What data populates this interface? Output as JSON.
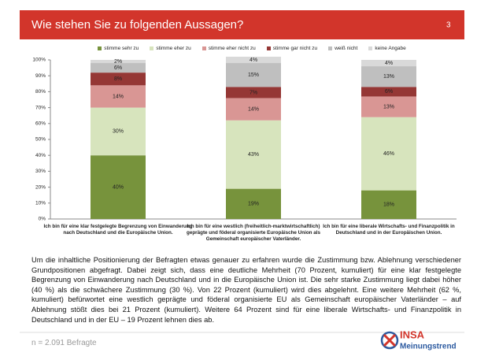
{
  "page": {
    "title": "Wie stehen Sie zu folgenden Aussagen?",
    "page_number": "3",
    "body": "Um die inhaltliche Positionierung der Befragten etwas genauer zu erfahren wurde die Zustimmung bzw. Ablehnung verschiedener Grundpositionen abgefragt. Dabei zeigt sich, dass eine deutliche Mehrheit (70 Prozent, kumuliert) für eine klar festgelegte Begrenzung von Einwanderung nach Deutschland und in die Europäische Union ist. Die sehr starke Zustimmung liegt dabei höher (40 %) als die schwächere Zustimmung (30 %). Von 22 Prozent (kumuliert) wird dies abgelehnt. Eine weitere Mehrheit (62 %, kumuliert) befürwortet eine westlich geprägte und föderal organisierte EU als Gemeinschaft europäischer Vaterländer – auf Ablehnung stößt dies bei 21 Prozent (kumuliert). Weitere 64 Prozent sind für eine liberale Wirtschafts- und Finanzpolitik in Deutschland und in der EU – 19 Prozent lehnen dies ab.",
    "footnote": "n = 2.091 Befragte",
    "logo_brand": "INSA",
    "logo_sub": "Meinungstrend"
  },
  "chart_data": {
    "type": "stacked_bar",
    "categories": [
      "Ich bin für eine klar festgelegte Begrenzung von Einwanderung nach Deutschland und die Europäische Union.",
      "Ich bin für eine westlich (freiheitlich-marktwirtschaftlich) geprägte und föderal organisierte Europäische Union als Gemeinschaft europäischer Vaterländer.",
      "Ich bin für eine liberale Wirtschafts- und Finanzpolitik in Deutschland und in der Europäischen Union."
    ],
    "series": [
      {
        "name": "stimme sehr zu",
        "color": "#77933c",
        "values": [
          40,
          19,
          18
        ],
        "value_labels": [
          "40%",
          "19%",
          "18%"
        ]
      },
      {
        "name": "stimme eher zu",
        "color": "#d7e4bd",
        "values": [
          30,
          43,
          46
        ],
        "value_labels": [
          "30%",
          "43%",
          "46%"
        ]
      },
      {
        "name": "stimme eher nicht zu",
        "color": "#d99694",
        "values": [
          14,
          14,
          13
        ],
        "value_labels": [
          "14%",
          "14%",
          "13%"
        ]
      },
      {
        "name": "stimme gar nicht zu",
        "color": "#953735",
        "values": [
          8,
          7,
          6
        ],
        "value_labels": [
          "8%",
          "7%",
          "6%"
        ]
      },
      {
        "name": "weiß nicht",
        "color": "#bfbfbf",
        "values": [
          6,
          15,
          13
        ],
        "value_labels": [
          "6%",
          "15%",
          "13%"
        ]
      },
      {
        "name": "keine Angabe",
        "color": "#d9d9d9",
        "values": [
          2,
          4,
          4
        ],
        "value_labels": [
          "2%",
          "4%",
          "4%"
        ]
      }
    ],
    "ylim": [
      0,
      100
    ],
    "yticks": [
      {
        "value": 0,
        "label": "0%"
      },
      {
        "value": 10,
        "label": "10%"
      },
      {
        "value": 20,
        "label": "20%"
      },
      {
        "value": 30,
        "label": "30%"
      },
      {
        "value": 40,
        "label": "40%"
      },
      {
        "value": 50,
        "label": "50%"
      },
      {
        "value": 60,
        "label": "60%"
      },
      {
        "value": 70,
        "label": "70%"
      },
      {
        "value": 80,
        "label": "80%"
      },
      {
        "value": 90,
        "label": "90%"
      },
      {
        "value": 100,
        "label": "100%"
      }
    ],
    "grid": false,
    "legend": "top"
  }
}
